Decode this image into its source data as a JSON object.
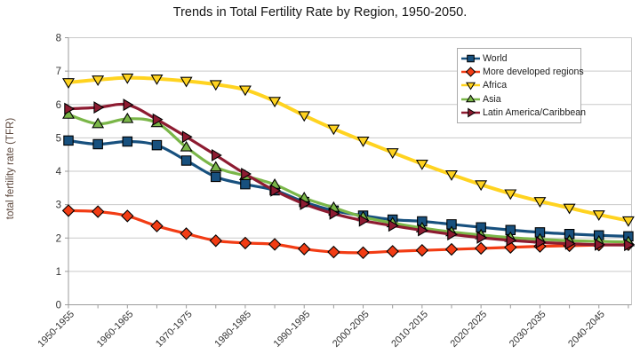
{
  "title": "Trends in Total Fertility Rate by Region, 1950-2050.",
  "y_axis": {
    "title": "total fertility rate (TFR)",
    "title_color": "#5b463b",
    "ticks": [
      0,
      1,
      2,
      3,
      4,
      5,
      6,
      7,
      8
    ]
  },
  "x_axis": {
    "labeled_ticks": [
      "1950-1955",
      "1960-1965",
      "1970-1975",
      "1980-1985",
      "1990-1995",
      "2000-2005",
      "2010-2015",
      "2020-2025",
      "2030-2035",
      "2040-2045"
    ]
  },
  "colors": {
    "grid": "#c9c9c9",
    "axis": "#9b9b9b",
    "tick_label": "#333333",
    "legend_border": "#ababab",
    "background": "#ffffff"
  },
  "chart_data": {
    "type": "line",
    "title": "Trends in Total Fertility Rate by Region, 1950-2050.",
    "xlabel": "",
    "ylabel": "total fertility rate (TFR)",
    "ylim": [
      0,
      8
    ],
    "yticks": [
      0,
      1,
      2,
      3,
      4,
      5,
      6,
      7,
      8
    ],
    "grid": "horizontal",
    "legend_position": "top-right",
    "x_labels_shown_every_other_tick": true,
    "categories": [
      "1950-1955",
      "1955-1960",
      "1960-1965",
      "1965-1970",
      "1970-1975",
      "1975-1980",
      "1980-1985",
      "1985-1990",
      "1990-1995",
      "1995-2000",
      "2000-2005",
      "2005-2010",
      "2010-2015",
      "2015-2020",
      "2020-2025",
      "2025-2030",
      "2030-2035",
      "2035-2040",
      "2040-2045",
      "2045-2050"
    ],
    "series": [
      {
        "name": "World",
        "color": "#17507e",
        "marker": "square",
        "values": [
          4.92,
          4.81,
          4.89,
          4.78,
          4.32,
          3.83,
          3.61,
          3.43,
          3.08,
          2.82,
          2.67,
          2.55,
          2.5,
          2.41,
          2.32,
          2.24,
          2.17,
          2.12,
          2.08,
          2.05
        ]
      },
      {
        "name": "More developed regions",
        "color": "#f23c14",
        "marker": "diamond",
        "values": [
          2.82,
          2.79,
          2.66,
          2.36,
          2.13,
          1.92,
          1.85,
          1.81,
          1.67,
          1.58,
          1.56,
          1.6,
          1.63,
          1.66,
          1.69,
          1.72,
          1.75,
          1.77,
          1.79,
          1.8
        ]
      },
      {
        "name": "Africa",
        "color": "#ffd320",
        "marker": "triangle-down",
        "values": [
          6.66,
          6.74,
          6.8,
          6.77,
          6.7,
          6.6,
          6.44,
          6.1,
          5.67,
          5.27,
          4.91,
          4.56,
          4.22,
          3.9,
          3.6,
          3.33,
          3.1,
          2.9,
          2.7,
          2.52
        ]
      },
      {
        "name": "Asia",
        "color": "#7ab648",
        "marker": "triangle-up",
        "values": [
          5.7,
          5.42,
          5.57,
          5.45,
          4.72,
          4.12,
          3.86,
          3.6,
          3.2,
          2.91,
          2.63,
          2.45,
          2.3,
          2.18,
          2.09,
          2.01,
          1.96,
          1.92,
          1.9,
          1.88
        ]
      },
      {
        "name": "Latin America/Caribbean",
        "color": "#8d1b31",
        "marker": "triangle-right",
        "values": [
          5.87,
          5.91,
          5.99,
          5.55,
          5.03,
          4.48,
          3.92,
          3.42,
          3.02,
          2.73,
          2.52,
          2.37,
          2.23,
          2.11,
          2.01,
          1.93,
          1.87,
          1.83,
          1.8,
          1.79
        ]
      }
    ]
  }
}
